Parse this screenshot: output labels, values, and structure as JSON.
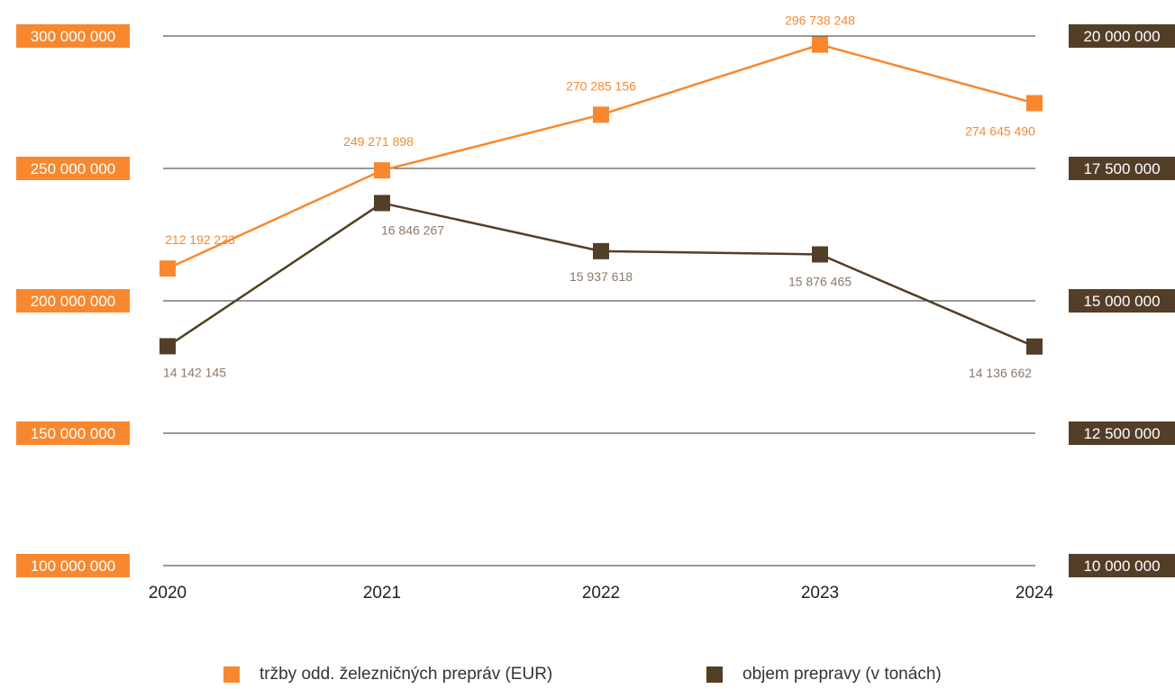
{
  "colors": {
    "revenue": "#f7882f",
    "volume": "#533e28",
    "revenue_label": "#f7882f",
    "volume_label": "#8c7a66",
    "gridline": "#333333",
    "axis_text": "#ffffff",
    "category_text": "#222222"
  },
  "chart_data": {
    "type": "line",
    "title": "",
    "categories": [
      "2020",
      "2021",
      "2022",
      "2023",
      "2024"
    ],
    "y_left": {
      "range": [
        100000000,
        300000000
      ],
      "ticks": [
        100000000,
        150000000,
        200000000,
        250000000,
        300000000
      ],
      "tick_labels": [
        "100 000 000",
        "150 000 000",
        "200 000 000",
        "250 000 000",
        "300 000 000"
      ]
    },
    "y_right": {
      "range": [
        10000000,
        20000000
      ],
      "ticks": [
        10000000,
        12500000,
        15000000,
        17500000,
        20000000
      ],
      "tick_labels": [
        "10 000 000",
        "12 500 000",
        "15 000 000",
        "17 500 000",
        "20 000 000"
      ]
    },
    "grid": true,
    "legend_position": "bottom",
    "series": [
      {
        "name": "tržby odd. železničných prepráv (EUR)",
        "axis": "left",
        "values": [
          212192223,
          249271898,
          270285156,
          296738248,
          274645490
        ],
        "labels": [
          "212 192 223",
          "249 271 898",
          "270 285 156",
          "296 738 248",
          "274 645 490"
        ]
      },
      {
        "name": "objem prepravy (v tonách)",
        "axis": "right",
        "values": [
          14142145,
          16846267,
          15937618,
          15876465,
          14136662
        ],
        "labels": [
          "14 142 145",
          "16 846 267",
          "15 937 618",
          "15 876 465",
          "14 136 662"
        ]
      }
    ]
  }
}
